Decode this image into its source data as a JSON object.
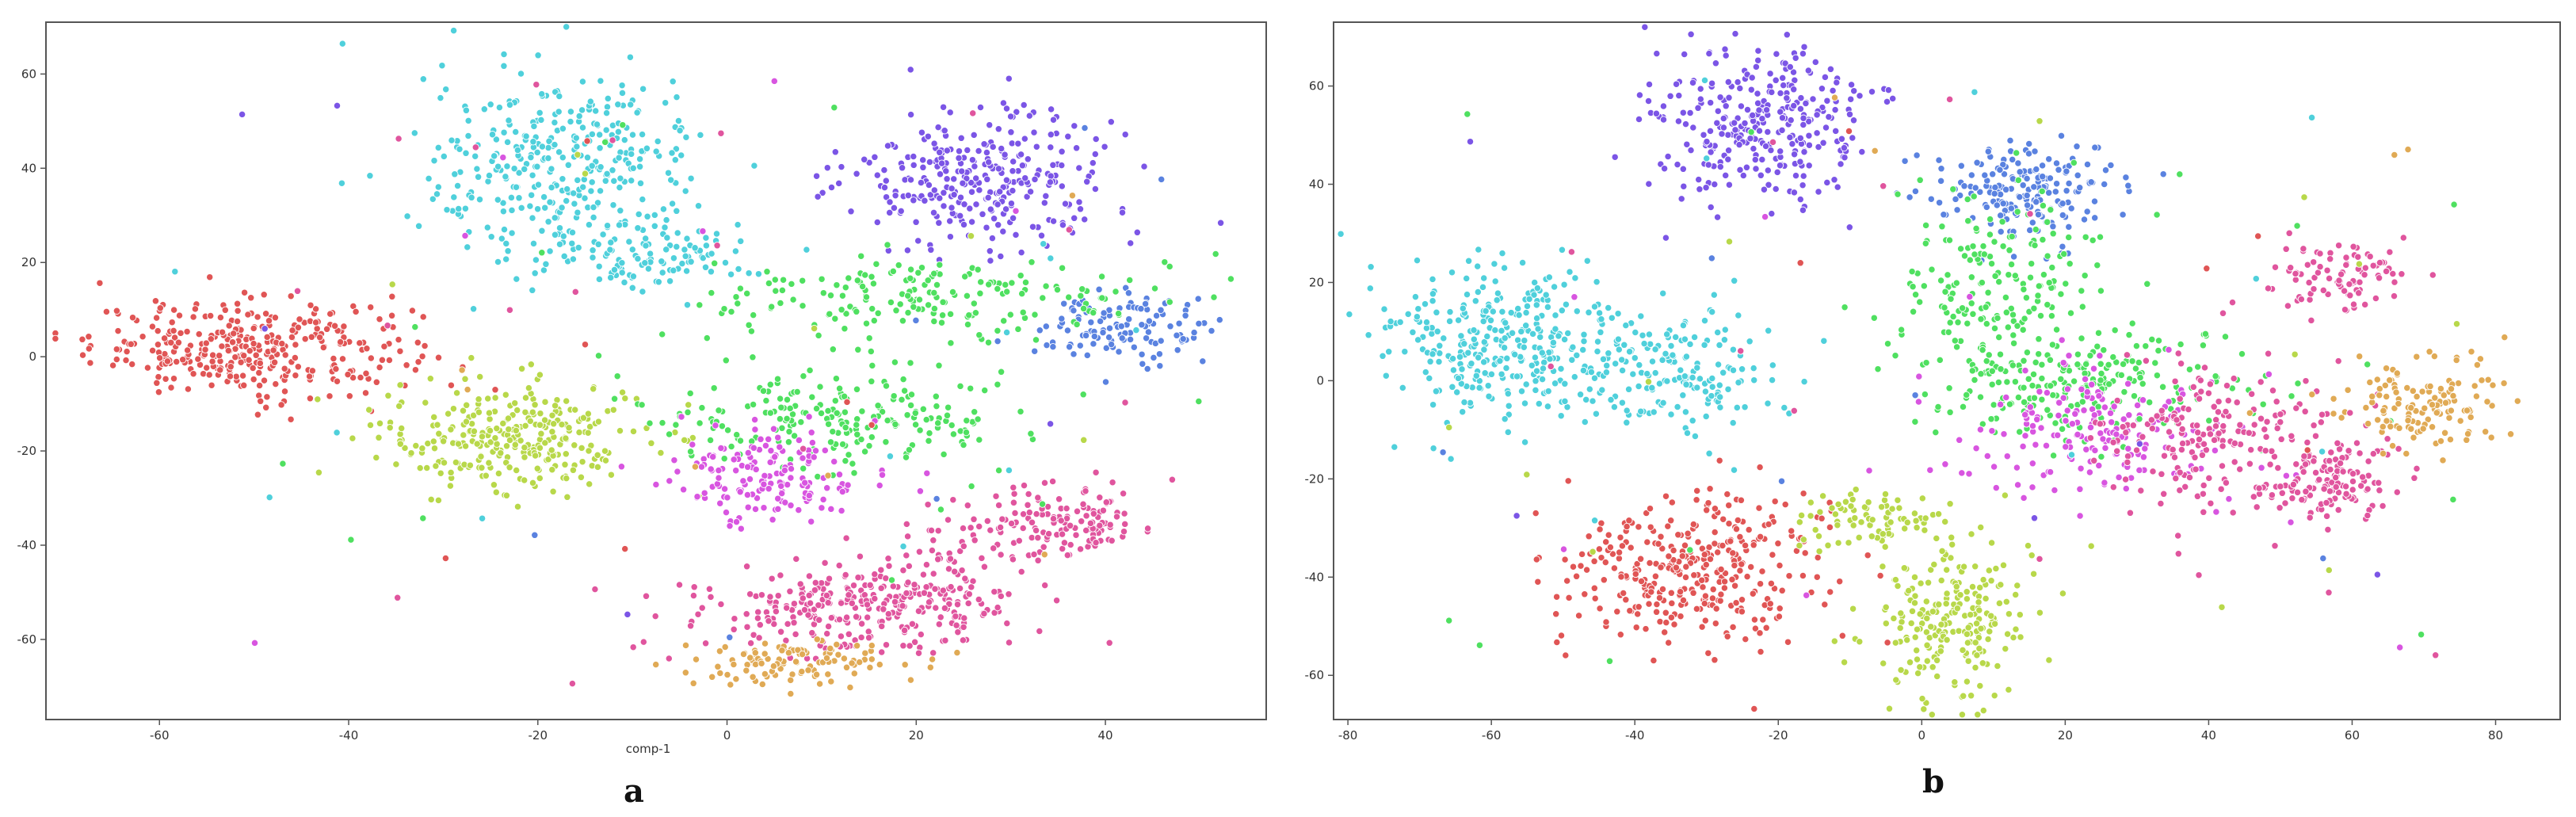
{
  "chart_data": [
    {
      "type": "scatter",
      "panel_label": "a",
      "title": "",
      "xlabel": "comp-1",
      "ylabel": "",
      "xlim": [
        -72,
        57
      ],
      "ylim": [
        -77,
        71
      ],
      "xticks": [
        -60,
        -40,
        -20,
        0,
        20,
        40
      ],
      "yticks": [
        -60,
        -40,
        -20,
        0,
        20,
        40,
        60
      ],
      "grid": false,
      "clusters": [
        {
          "color": "#e05555",
          "center": [
            -50,
            2
          ],
          "spread": [
            8.5,
            5
          ],
          "n": 340
        },
        {
          "color": "#b8d84a",
          "center": [
            -23,
            -17
          ],
          "spread": [
            7,
            6
          ],
          "n": 290
        },
        {
          "color": "#4fd0db",
          "center": [
            -17,
            40
          ],
          "spread": [
            7.5,
            10
          ],
          "n": 340
        },
        {
          "color": "#4fd0db",
          "center": [
            -9,
            22
          ],
          "spread": [
            6,
            4
          ],
          "n": 110
        },
        {
          "color": "#7b55e6",
          "center": [
            27,
            38
          ],
          "spread": [
            7,
            7
          ],
          "n": 300
        },
        {
          "color": "#5a82e0",
          "center": [
            42,
            6
          ],
          "spread": [
            5,
            3.5
          ],
          "n": 120
        },
        {
          "color": "#4fe060",
          "center": [
            22,
            12
          ],
          "spread": [
            12,
            5
          ],
          "n": 190
        },
        {
          "color": "#4fe060",
          "center": [
            12,
            -13
          ],
          "spread": [
            10,
            5
          ],
          "n": 210
        },
        {
          "color": "#d855e0",
          "center": [
            4,
            -25
          ],
          "spread": [
            5,
            5
          ],
          "n": 160
        },
        {
          "color": "#e0559e",
          "center": [
            12,
            -54
          ],
          "spread": [
            9,
            5
          ],
          "n": 220
        },
        {
          "color": "#e0559e",
          "center": [
            35,
            -36
          ],
          "spread": [
            6,
            4
          ],
          "n": 150
        },
        {
          "color": "#e0559e",
          "center": [
            20,
            -50
          ],
          "spread": [
            5,
            4.5
          ],
          "n": 110
        },
        {
          "color": "#e0aa55",
          "center": [
            7,
            -65
          ],
          "spread": [
            6,
            2.5
          ],
          "n": 110
        }
      ]
    },
    {
      "type": "scatter",
      "panel_label": "b",
      "title": "",
      "xlabel": "",
      "ylabel": "",
      "xlim": [
        -82,
        89
      ],
      "ylim": [
        -69,
        73
      ],
      "xticks": [
        -80,
        -60,
        -40,
        -20,
        0,
        20,
        40,
        60,
        80
      ],
      "yticks": [
        -60,
        -40,
        -20,
        0,
        20,
        40,
        60
      ],
      "grid": false,
      "clusters": [
        {
          "color": "#7b55e6",
          "center": [
            -22,
            52
          ],
          "spread": [
            7.5,
            8
          ],
          "n": 300
        },
        {
          "color": "#5a82e0",
          "center": [
            14,
            38
          ],
          "spread": [
            6,
            5
          ],
          "n": 190
        },
        {
          "color": "#4fd0db",
          "center": [
            -58,
            7
          ],
          "spread": [
            9,
            8
          ],
          "n": 340
        },
        {
          "color": "#4fd0db",
          "center": [
            -33,
            2
          ],
          "spread": [
            7,
            6
          ],
          "n": 150
        },
        {
          "color": "#4fe060",
          "center": [
            10,
            20
          ],
          "spread": [
            8,
            10
          ],
          "n": 180
        },
        {
          "color": "#4fe060",
          "center": [
            22,
            0
          ],
          "spread": [
            12,
            6
          ],
          "n": 220
        },
        {
          "color": "#d855e0",
          "center": [
            25,
            -10
          ],
          "spread": [
            10,
            7
          ],
          "n": 180
        },
        {
          "color": "#e0559e",
          "center": [
            42,
            -12
          ],
          "spread": [
            8,
            8
          ],
          "n": 200
        },
        {
          "color": "#e0559e",
          "center": [
            58,
            -20
          ],
          "spread": [
            5,
            4
          ],
          "n": 120
        },
        {
          "color": "#e0559e",
          "center": [
            58,
            21
          ],
          "spread": [
            5,
            3.5
          ],
          "n": 90
        },
        {
          "color": "#e0aa55",
          "center": [
            70,
            -5
          ],
          "spread": [
            6,
            5
          ],
          "n": 130
        },
        {
          "color": "#e05555",
          "center": [
            -32,
            -38
          ],
          "spread": [
            8.5,
            8
          ],
          "n": 340
        },
        {
          "color": "#b8d84a",
          "center": [
            4,
            -48
          ],
          "spread": [
            6,
            8
          ],
          "n": 230
        },
        {
          "color": "#b8d84a",
          "center": [
            -8,
            -28
          ],
          "spread": [
            5,
            3
          ],
          "n": 80
        }
      ]
    }
  ]
}
